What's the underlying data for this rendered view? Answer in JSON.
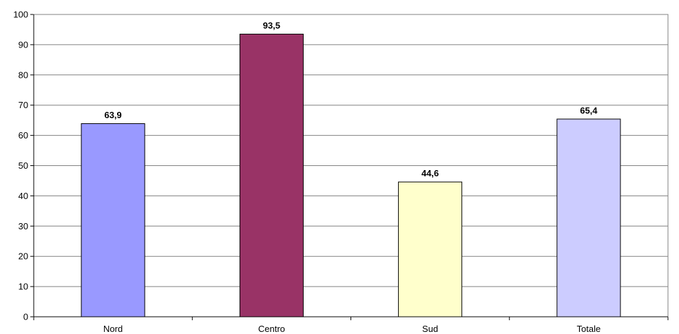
{
  "chart_data": {
    "type": "bar",
    "title": "",
    "xlabel": "",
    "ylabel": "",
    "categories": [
      "Nord",
      "Centro",
      "Sud",
      "Totale"
    ],
    "values": [
      63.9,
      93.5,
      44.6,
      65.4
    ],
    "value_labels": [
      "63,9",
      "93,5",
      "44,6",
      "65,4"
    ],
    "colors": [
      "#9999ff",
      "#993366",
      "#ffffcc",
      "#ccccff"
    ],
    "ylim": [
      0,
      100
    ],
    "yticks": [
      0,
      10,
      20,
      30,
      40,
      50,
      60,
      70,
      80,
      90,
      100
    ],
    "grid": true,
    "legend": "none"
  }
}
